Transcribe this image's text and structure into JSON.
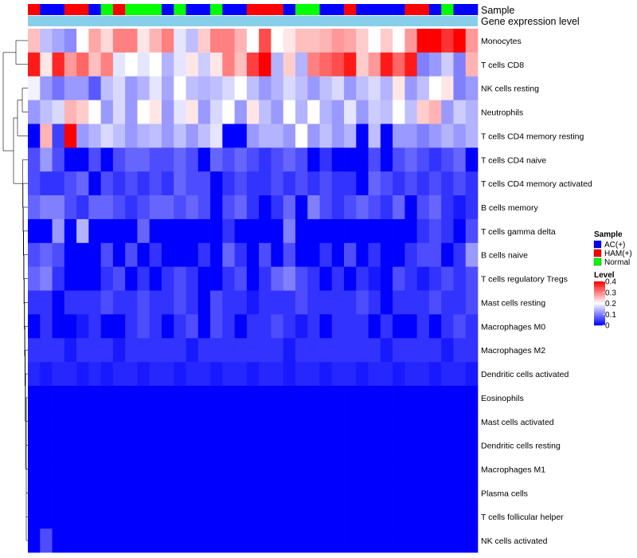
{
  "chart_data": {
    "type": "heatmap",
    "annotation_labels": {
      "sample": "Sample",
      "gene_expression": "Gene expression level"
    },
    "rows": [
      "Monocytes",
      "T cells CD8",
      "NK cells resting",
      "Neutrophils",
      "T cells CD4 memory resting",
      "T cells CD4 naive",
      "T cells CD4 memory activated",
      "B cells memory",
      "T cells gamma delta",
      "B cells naive",
      "T cells regulatory  Tregs",
      "Mast cells resting",
      "Macrophages M0",
      "Macrophages M2",
      "Dendritic cells activated",
      "Eosinophils",
      "Mast cells activated",
      "Dendritic cells resting",
      "Macrophages M1",
      "Plasma cells",
      "T cells follicular helper",
      "NK cells activated"
    ],
    "sample_groups": [
      "HAM(+)",
      "AC(+)",
      "AC(+)",
      "HAM(+)",
      "HAM(+)",
      "AC(+)",
      "Normal",
      "HAM(+)",
      "Normal",
      "Normal",
      "Normal",
      "AC(+)",
      "Normal",
      "AC(+)",
      "AC(+)",
      "Normal",
      "AC(+)",
      "AC(+)",
      "HAM(+)",
      "HAM(+)",
      "HAM(+)",
      "AC(+)",
      "Normal",
      "Normal",
      "AC(+)",
      "AC(+)",
      "HAM(+)",
      "AC(+)",
      "AC(+)",
      "AC(+)",
      "AC(+)",
      "HAM(+)",
      "HAM(+)",
      "AC(+)",
      "Normal",
      "AC(+)",
      "AC(+)"
    ],
    "values": [
      [
        0.25,
        0.15,
        0.13,
        0.11,
        0.2,
        0.27,
        0.23,
        0.3,
        0.3,
        0.22,
        0.26,
        0.3,
        0.18,
        0.15,
        0.24,
        0.3,
        0.3,
        0.26,
        0.2,
        0.34,
        0.2,
        0.22,
        0.25,
        0.25,
        0.26,
        0.28,
        0.27,
        0.24,
        0.2,
        0.24,
        0.2,
        0.28,
        0.4,
        0.4,
        0.36,
        0.4,
        0.28
      ],
      [
        0.38,
        0.22,
        0.37,
        0.28,
        0.32,
        0.25,
        0.3,
        0.18,
        0.2,
        0.18,
        0.2,
        0.14,
        0.18,
        0.22,
        0.16,
        0.22,
        0.3,
        0.25,
        0.35,
        0.4,
        0.14,
        0.24,
        0.14,
        0.3,
        0.32,
        0.34,
        0.38,
        0.24,
        0.28,
        0.38,
        0.32,
        0.38,
        0.1,
        0.12,
        0.16,
        0.1,
        0.26
      ],
      [
        0.19,
        0.12,
        0.09,
        0.12,
        0.12,
        0.07,
        0.15,
        0.17,
        0.12,
        0.14,
        0.18,
        0.13,
        0.2,
        0.15,
        0.14,
        0.15,
        0.17,
        0.2,
        0.15,
        0.12,
        0.14,
        0.17,
        0.15,
        0.12,
        0.15,
        0.17,
        0.12,
        0.15,
        0.17,
        0.14,
        0.22,
        0.12,
        0.15,
        0.2,
        0.22,
        0.1,
        0.12
      ],
      [
        0.12,
        0.15,
        0.17,
        0.26,
        0.24,
        0.2,
        0.12,
        0.17,
        0.12,
        0.2,
        0.22,
        0.12,
        0.18,
        0.22,
        0.12,
        0.17,
        0.2,
        0.12,
        0.22,
        0.15,
        0.12,
        0.2,
        0.14,
        0.2,
        0.14,
        0.12,
        0.18,
        0.12,
        0.16,
        0.15,
        0.2,
        0.15,
        0.24,
        0.26,
        0.12,
        0.16,
        0.14
      ],
      [
        0.0,
        0.26,
        0.05,
        0.4,
        0.12,
        0.14,
        0.17,
        0.15,
        0.12,
        0.14,
        0.15,
        0.12,
        0.15,
        0.12,
        0.15,
        0.18,
        0.0,
        0.0,
        0.12,
        0.14,
        0.14,
        0.12,
        0.2,
        0.12,
        0.15,
        0.12,
        0.14,
        0.0,
        0.15,
        0.0,
        0.12,
        0.12,
        0.1,
        0.12,
        0.14,
        0.12,
        0.14
      ],
      [
        0.06,
        0.12,
        0.06,
        0.0,
        0.0,
        0.06,
        0.0,
        0.06,
        0.08,
        0.08,
        0.06,
        0.06,
        0.08,
        0.06,
        0.0,
        0.08,
        0.06,
        0.08,
        0.06,
        0.04,
        0.06,
        0.08,
        0.06,
        0.0,
        0.04,
        0.0,
        0.0,
        0.0,
        0.06,
        0.0,
        0.06,
        0.08,
        0.06,
        0.04,
        0.06,
        0.08,
        0.0
      ],
      [
        0.06,
        0.04,
        0.04,
        0.06,
        0.08,
        0.0,
        0.06,
        0.04,
        0.06,
        0.04,
        0.06,
        0.04,
        0.08,
        0.06,
        0.06,
        0.0,
        0.04,
        0.06,
        0.04,
        0.04,
        0.06,
        0.04,
        0.06,
        0.04,
        0.06,
        0.04,
        0.04,
        0.0,
        0.08,
        0.06,
        0.04,
        0.06,
        0.04,
        0.06,
        0.04,
        0.06,
        0.04
      ],
      [
        0.08,
        0.1,
        0.1,
        0.06,
        0.04,
        0.08,
        0.08,
        0.06,
        0.04,
        0.06,
        0.08,
        0.08,
        0.06,
        0.08,
        0.06,
        0.0,
        0.06,
        0.08,
        0.04,
        0.0,
        0.04,
        0.08,
        0.0,
        0.1,
        0.06,
        0.04,
        0.06,
        0.08,
        0.06,
        0.04,
        0.08,
        0.0,
        0.06,
        0.08,
        0.04,
        0.02,
        0.04
      ],
      [
        0.0,
        0.0,
        0.12,
        0.0,
        0.14,
        0.0,
        0.0,
        0.0,
        0.0,
        0.08,
        0.0,
        0.0,
        0.0,
        0.0,
        0.0,
        0.0,
        0.04,
        0.0,
        0.0,
        0.0,
        0.0,
        0.1,
        0.0,
        0.0,
        0.0,
        0.0,
        0.0,
        0.0,
        0.0,
        0.0,
        0.0,
        0.0,
        0.04,
        0.06,
        0.04,
        0.0,
        0.06
      ],
      [
        0.06,
        0.08,
        0.06,
        0.0,
        0.0,
        0.0,
        0.06,
        0.0,
        0.06,
        0.0,
        0.04,
        0.0,
        0.0,
        0.0,
        0.04,
        0.0,
        0.08,
        0.04,
        0.0,
        0.06,
        0.0,
        0.06,
        0.0,
        0.0,
        0.04,
        0.0,
        0.06,
        0.0,
        0.04,
        0.0,
        0.0,
        0.04,
        0.06,
        0.06,
        0.0,
        0.04,
        0.12
      ],
      [
        0.08,
        0.1,
        0.04,
        0.0,
        0.0,
        0.0,
        0.04,
        0.06,
        0.0,
        0.04,
        0.0,
        0.04,
        0.06,
        0.04,
        0.0,
        0.0,
        0.04,
        0.06,
        0.0,
        0.04,
        0.08,
        0.1,
        0.06,
        0.04,
        0.0,
        0.04,
        0.0,
        0.04,
        0.02,
        0.0,
        0.06,
        0.04,
        0.02,
        0.04,
        0.06,
        0.04,
        0.06
      ],
      [
        0.04,
        0.04,
        0.0,
        0.04,
        0.04,
        0.04,
        0.06,
        0.04,
        0.04,
        0.06,
        0.04,
        0.04,
        0.06,
        0.04,
        0.0,
        0.06,
        0.04,
        0.04,
        0.02,
        0.04,
        0.04,
        0.04,
        0.06,
        0.04,
        0.04,
        0.04,
        0.04,
        0.06,
        0.04,
        0.0,
        0.04,
        0.04,
        0.04,
        0.06,
        0.04,
        0.04,
        0.06
      ],
      [
        0.0,
        0.04,
        0.0,
        0.0,
        0.02,
        0.04,
        0.0,
        0.0,
        0.04,
        0.06,
        0.04,
        0.0,
        0.04,
        0.06,
        0.0,
        0.06,
        0.04,
        0.0,
        0.04,
        0.04,
        0.06,
        0.04,
        0.02,
        0.04,
        0.0,
        0.04,
        0.04,
        0.04,
        0.0,
        0.04,
        0.0,
        0.0,
        0.04,
        0.0,
        0.04,
        0.06,
        0.04
      ],
      [
        0.04,
        0.04,
        0.04,
        0.02,
        0.04,
        0.04,
        0.04,
        0.02,
        0.04,
        0.04,
        0.04,
        0.04,
        0.04,
        0.02,
        0.04,
        0.04,
        0.04,
        0.04,
        0.04,
        0.04,
        0.04,
        0.02,
        0.04,
        0.04,
        0.04,
        0.04,
        0.04,
        0.04,
        0.04,
        0.02,
        0.04,
        0.04,
        0.04,
        0.04,
        0.02,
        0.04,
        0.04
      ],
      [
        0.03,
        0.02,
        0.03,
        0.03,
        0.02,
        0.03,
        0.02,
        0.03,
        0.03,
        0.02,
        0.03,
        0.03,
        0.02,
        0.03,
        0.03,
        0.02,
        0.03,
        0.03,
        0.02,
        0.03,
        0.03,
        0.02,
        0.03,
        0.03,
        0.02,
        0.03,
        0.03,
        0.02,
        0.03,
        0.03,
        0.02,
        0.03,
        0.03,
        0.02,
        0.03,
        0.03,
        0.02
      ],
      [
        0,
        0,
        0,
        0,
        0,
        0,
        0,
        0,
        0,
        0,
        0,
        0,
        0,
        0,
        0,
        0,
        0,
        0,
        0,
        0,
        0,
        0,
        0,
        0,
        0,
        0,
        0,
        0,
        0,
        0,
        0,
        0,
        0,
        0,
        0,
        0,
        0
      ],
      [
        0,
        0,
        0,
        0,
        0,
        0,
        0,
        0,
        0,
        0,
        0,
        0,
        0,
        0,
        0,
        0,
        0,
        0,
        0,
        0,
        0,
        0,
        0,
        0,
        0,
        0,
        0,
        0,
        0,
        0,
        0,
        0,
        0,
        0,
        0,
        0,
        0
      ],
      [
        0,
        0,
        0,
        0,
        0,
        0,
        0,
        0,
        0,
        0,
        0,
        0,
        0,
        0,
        0,
        0,
        0,
        0,
        0,
        0,
        0,
        0,
        0,
        0,
        0,
        0,
        0,
        0,
        0,
        0,
        0,
        0,
        0,
        0,
        0,
        0,
        0
      ],
      [
        0,
        0,
        0,
        0,
        0,
        0,
        0,
        0,
        0,
        0,
        0,
        0,
        0,
        0,
        0,
        0,
        0,
        0,
        0,
        0,
        0,
        0,
        0,
        0,
        0,
        0,
        0,
        0,
        0,
        0,
        0,
        0,
        0,
        0,
        0,
        0,
        0
      ],
      [
        0,
        0,
        0,
        0,
        0,
        0,
        0,
        0,
        0,
        0,
        0,
        0,
        0,
        0,
        0,
        0,
        0,
        0,
        0,
        0,
        0,
        0,
        0,
        0,
        0,
        0,
        0,
        0,
        0,
        0,
        0,
        0,
        0,
        0,
        0,
        0,
        0
      ],
      [
        0,
        0,
        0,
        0,
        0,
        0,
        0,
        0,
        0,
        0,
        0,
        0,
        0,
        0,
        0,
        0,
        0,
        0,
        0,
        0,
        0,
        0,
        0,
        0,
        0,
        0,
        0,
        0,
        0,
        0,
        0,
        0,
        0,
        0,
        0,
        0,
        0
      ],
      [
        0,
        0.06,
        0,
        0,
        0,
        0,
        0,
        0,
        0,
        0,
        0,
        0,
        0,
        0,
        0,
        0,
        0,
        0,
        0,
        0,
        0,
        0,
        0,
        0,
        0,
        0,
        0,
        0,
        0,
        0,
        0,
        0,
        0,
        0,
        0,
        0,
        0
      ]
    ],
    "sample_legend": {
      "title": "Sample",
      "entries": [
        {
          "label": "AC(+)",
          "color": "#0000ff"
        },
        {
          "label": "HAM(+)",
          "color": "#ff0000"
        },
        {
          "label": "Normal",
          "color": "#00ff00"
        }
      ]
    },
    "level_legend": {
      "title": "Level",
      "ticks": [
        "0.4",
        "0.3",
        "0.2",
        "0.1",
        "0"
      ],
      "range": [
        0,
        0.4
      ]
    },
    "colors": {
      "low": "#0000ff",
      "mid": "#ffffff",
      "high": "#ff0000",
      "expression_bar": "#87ceeb",
      "dendrogram": "#000000"
    }
  }
}
